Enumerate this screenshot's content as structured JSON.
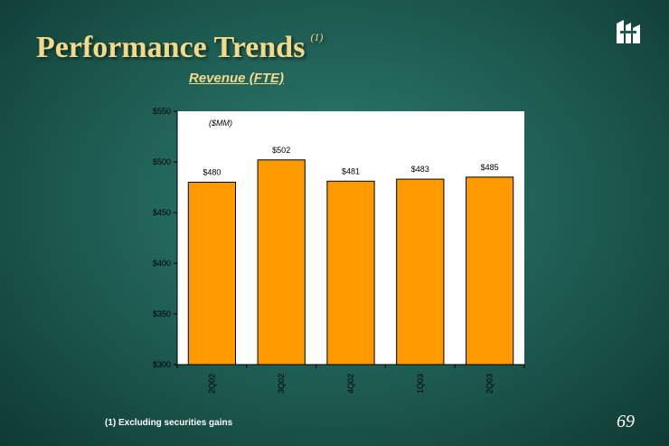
{
  "slide": {
    "title": "Performance Trends",
    "title_note": "(1)",
    "subtitle": "Revenue (FTE)",
    "unit_label": "($MM)",
    "footnote": "(1) Excluding securities gains",
    "page_number": "69",
    "logo_icon": "bank-logo-icon",
    "colors": {
      "title": "#f5d98a",
      "bar": "#ff9900",
      "background": "#1d5a50"
    }
  },
  "chart_data": {
    "type": "bar",
    "title": "Revenue (FTE)",
    "ylabel": "",
    "xlabel": "",
    "categories": [
      "2Q02",
      "3Q02",
      "4Q02",
      "1Q03",
      "2Q03"
    ],
    "values": [
      480,
      502,
      481,
      483,
      485
    ],
    "data_labels": [
      "$480",
      "$502",
      "$481",
      "$483",
      "$485"
    ],
    "ylim": [
      300,
      550
    ],
    "yticks": [
      300,
      350,
      400,
      450,
      500,
      550
    ],
    "ytick_labels": [
      "$300",
      "$350",
      "$400",
      "$450",
      "$500",
      "$550"
    ],
    "grid": false,
    "bar_color": "#ff9900"
  }
}
